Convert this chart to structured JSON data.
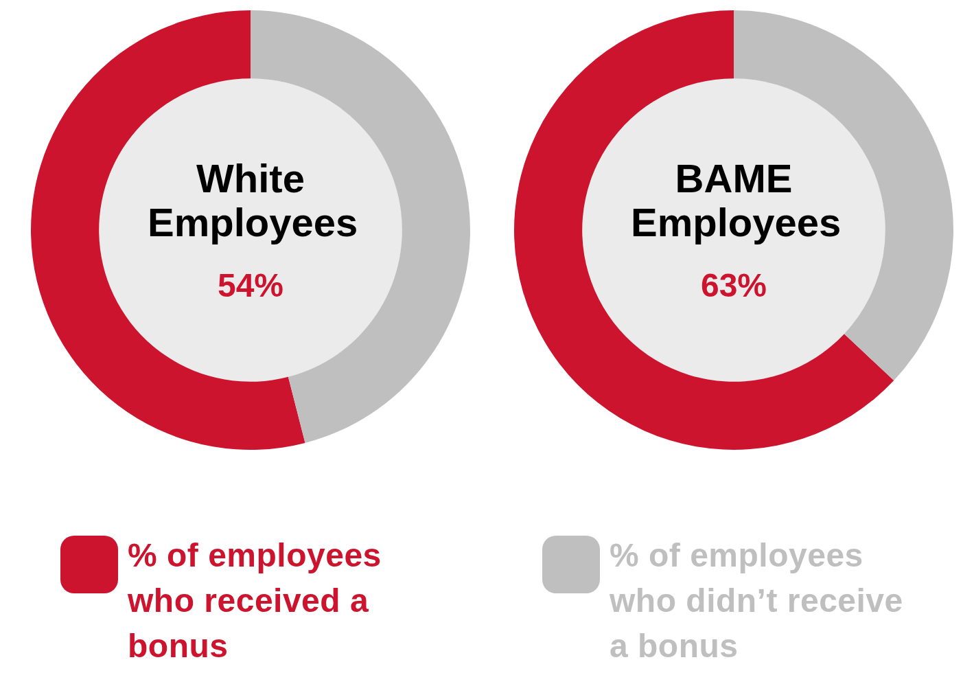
{
  "chart_data": [
    {
      "type": "donut",
      "title": "White Employees",
      "categories": [
        "% of employees who received a bonus",
        "% of employees who didn’t receive a bonus"
      ],
      "values": [
        54,
        46
      ],
      "colors": [
        "#cc142e",
        "#bfbfbf"
      ],
      "value_labels": [
        "54%",
        null
      ],
      "legend": "bottom"
    },
    {
      "type": "donut",
      "title": "BAME Employees",
      "categories": [
        null,
        null
      ],
      "values": [
        63,
        37
      ],
      "colors": [
        "#cc142e",
        "#bfbfbf"
      ],
      "value_labels": [
        "63%",
        null
      ]
    }
  ]
}
